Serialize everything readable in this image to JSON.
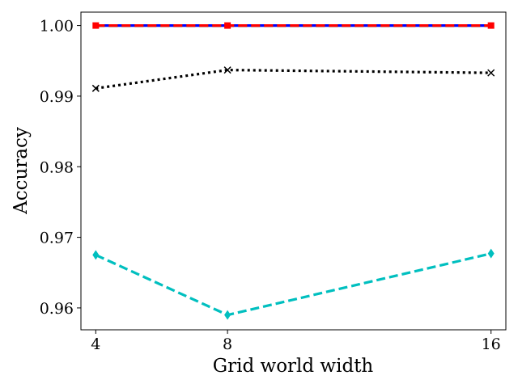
{
  "chart_data": {
    "type": "line",
    "title": "",
    "xlabel": "Grid world width",
    "ylabel": "Accuracy",
    "x": [
      4,
      8,
      16
    ],
    "xticks": [
      "4",
      "8",
      "16"
    ],
    "xlim": [
      3.55,
      16.45
    ],
    "yticks": [
      "0.96",
      "0.97",
      "0.98",
      "0.99",
      "1.00"
    ],
    "ytick_values": [
      0.96,
      0.97,
      0.98,
      0.99,
      1.0
    ],
    "ylim": [
      0.9569,
      1.0019
    ],
    "grid": false,
    "series": [
      {
        "values": [
          1.0,
          1.0,
          1.0
        ],
        "color": "#0000ff",
        "linestyle": "solid",
        "marker": "none"
      },
      {
        "values": [
          1.0,
          1.0,
          1.0
        ],
        "color": "#008000",
        "linestyle": "dashed",
        "marker": "none"
      },
      {
        "values": [
          1.0,
          1.0,
          1.0
        ],
        "color": "#ff0000",
        "linestyle": "dashed",
        "marker": "square"
      },
      {
        "values": [
          0.9911,
          0.9937,
          0.9933
        ],
        "color": "#000000",
        "linestyle": "dotted",
        "marker": "x"
      },
      {
        "values": [
          0.9675,
          0.959,
          0.9677
        ],
        "color": "#00bfbf",
        "linestyle": "dashed",
        "marker": "diamond"
      }
    ]
  }
}
